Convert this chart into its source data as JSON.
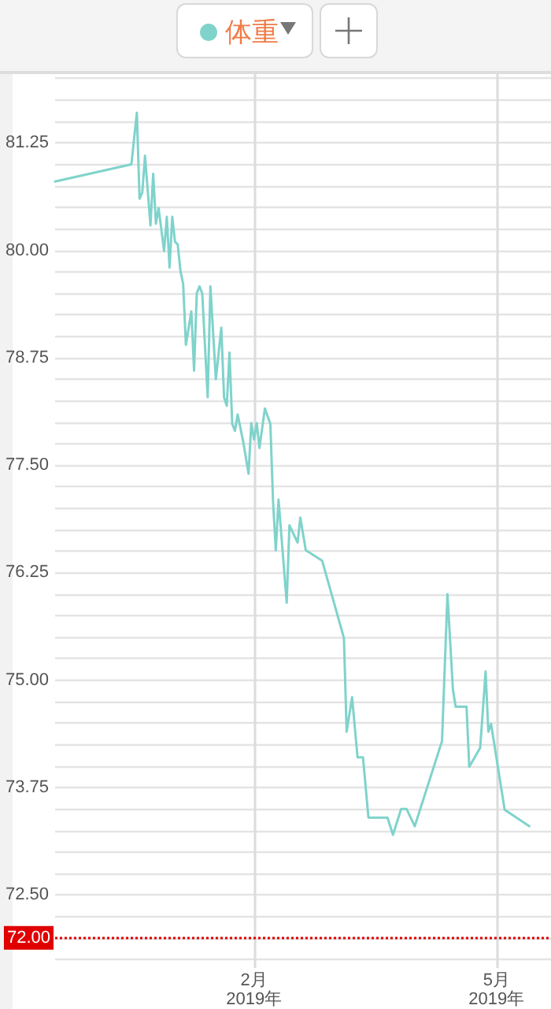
{
  "chart_data": {
    "type": "line",
    "legend": "top",
    "grid": true,
    "marker": "none",
    "line_style": "solid",
    "xlim": [
      "2018-11-20",
      "2019-05-21"
    ],
    "xticks": [
      {
        "value": "2019-02-01",
        "label": "2月\n2019年"
      },
      {
        "value": "2019-05-01",
        "label": "5月\n2019年"
      }
    ],
    "ylim": [
      71.65,
      82.05
    ],
    "yticks": [
      {
        "value": 71.75,
        "label": null
      },
      {
        "value": 72,
        "label": null
      },
      {
        "value": 72.25,
        "label": null
      },
      {
        "value": 72.5,
        "label": "72.50"
      },
      {
        "value": 72.75,
        "label": null
      },
      {
        "value": 73,
        "label": null
      },
      {
        "value": 73.25,
        "label": null
      },
      {
        "value": 73.5,
        "label": null
      },
      73.75,
      {
        "value": 74,
        "label": null
      },
      {
        "value": 74.25,
        "label": null
      },
      {
        "value": 74.5,
        "label": null
      },
      {
        "value": 74.75,
        "label": null
      },
      {
        "value": 75,
        "label": "75.00"
      },
      {
        "value": 75.25,
        "label": null
      },
      {
        "value": 75.5,
        "label": null
      },
      {
        "value": 75.75,
        "label": null
      },
      {
        "value": 76,
        "label": null
      },
      76.25,
      {
        "value": 76.5,
        "label": null
      },
      {
        "value": 76.75,
        "label": null
      },
      {
        "value": 77,
        "label": null
      },
      {
        "value": 77.25,
        "label": null
      },
      {
        "value": 77.5,
        "label": "77.50"
      },
      {
        "value": 77.75,
        "label": null
      },
      {
        "value": 78,
        "label": null
      },
      {
        "value": 78.25,
        "label": null
      },
      {
        "value": 78.5,
        "label": null
      },
      78.75,
      {
        "value": 79,
        "label": null
      },
      {
        "value": 79.25,
        "label": null
      },
      {
        "value": 79.5,
        "label": null
      },
      {
        "value": 79.75,
        "label": null
      },
      {
        "value": 80,
        "label": "80.00"
      },
      {
        "value": 80.25,
        "label": null
      },
      {
        "value": 80.5,
        "label": null
      },
      {
        "value": 80.75,
        "label": null
      },
      {
        "value": 81,
        "label": null
      },
      81.25,
      {
        "value": 81.5,
        "label": null
      },
      {
        "value": 81.75,
        "label": null
      },
      {
        "value": 82,
        "label": null
      }
    ],
    "ref_lines": [
      {
        "axis": "y",
        "value": 72,
        "label": "72.00",
        "color": "#e00000",
        "line_style": "dotted"
      }
    ],
    "series": [
      {
        "name": "体重",
        "color": "#7fd3cb",
        "x": [
          "2018-11-20",
          "2018-12-18",
          "2018-12-20",
          "2018-12-21",
          "2018-12-22",
          "2018-12-23",
          "2018-12-25",
          "2018-12-26",
          "2018-12-27",
          "2018-12-28",
          "2018-12-30",
          "2018-12-31",
          "2019-01-01",
          "2019-01-02",
          "2019-01-03",
          "2019-01-04",
          "2019-01-05",
          "2019-01-06",
          "2019-01-07",
          "2019-01-09",
          "2019-01-10",
          "2019-01-11",
          "2019-01-12",
          "2019-01-13",
          "2019-01-15",
          "2019-01-16",
          "2019-01-18",
          "2019-01-20",
          "2019-01-21",
          "2019-01-22",
          "2019-01-23",
          "2019-01-24",
          "2019-01-25",
          "2019-01-26",
          "2019-01-28",
          "2019-01-30",
          "2019-01-31",
          "2019-02-01",
          "2019-02-02",
          "2019-02-03",
          "2019-02-05",
          "2019-02-07",
          "2019-02-08",
          "2019-02-09",
          "2019-02-10",
          "2019-02-13",
          "2019-02-14",
          "2019-02-17",
          "2019-02-18",
          "2019-02-20",
          "2019-02-26",
          "2019-03-06",
          "2019-03-07",
          "2019-03-09",
          "2019-03-11",
          "2019-03-13",
          "2019-03-15",
          "2019-03-22",
          "2019-03-24",
          "2019-03-27",
          "2019-03-29",
          "2019-04-01",
          "2019-04-11",
          "2019-04-13",
          "2019-04-15",
          "2019-04-16",
          "2019-04-20",
          "2019-04-21",
          "2019-04-25",
          "2019-04-27",
          "2019-04-28",
          "2019-04-29",
          "2019-05-04",
          "2019-05-13"
        ],
        "values": [
          80.8,
          81.0,
          81.6,
          80.6,
          80.67,
          81.1,
          80.29,
          80.89,
          80.31,
          80.49,
          79.99,
          80.39,
          79.8,
          80.39,
          80.1,
          80.07,
          79.76,
          79.61,
          78.9,
          79.29,
          78.6,
          79.5,
          79.58,
          79.5,
          78.29,
          79.58,
          78.5,
          79.1,
          78.29,
          78.19,
          78.81,
          77.98,
          77.9,
          78.09,
          77.78,
          77.4,
          77.99,
          77.8,
          77.99,
          77.7,
          78.16,
          77.98,
          77.07,
          76.51,
          77.1,
          75.9,
          76.8,
          76.6,
          76.89,
          76.51,
          76.39,
          75.49,
          74.4,
          74.8,
          74.1,
          74.1,
          73.4,
          73.4,
          73.2,
          73.5,
          73.5,
          73.3,
          74.29,
          76.0,
          74.89,
          74.69,
          74.69,
          73.99,
          74.21,
          75.1,
          74.4,
          74.49,
          73.49,
          73.3
        ]
      }
    ]
  }
}
